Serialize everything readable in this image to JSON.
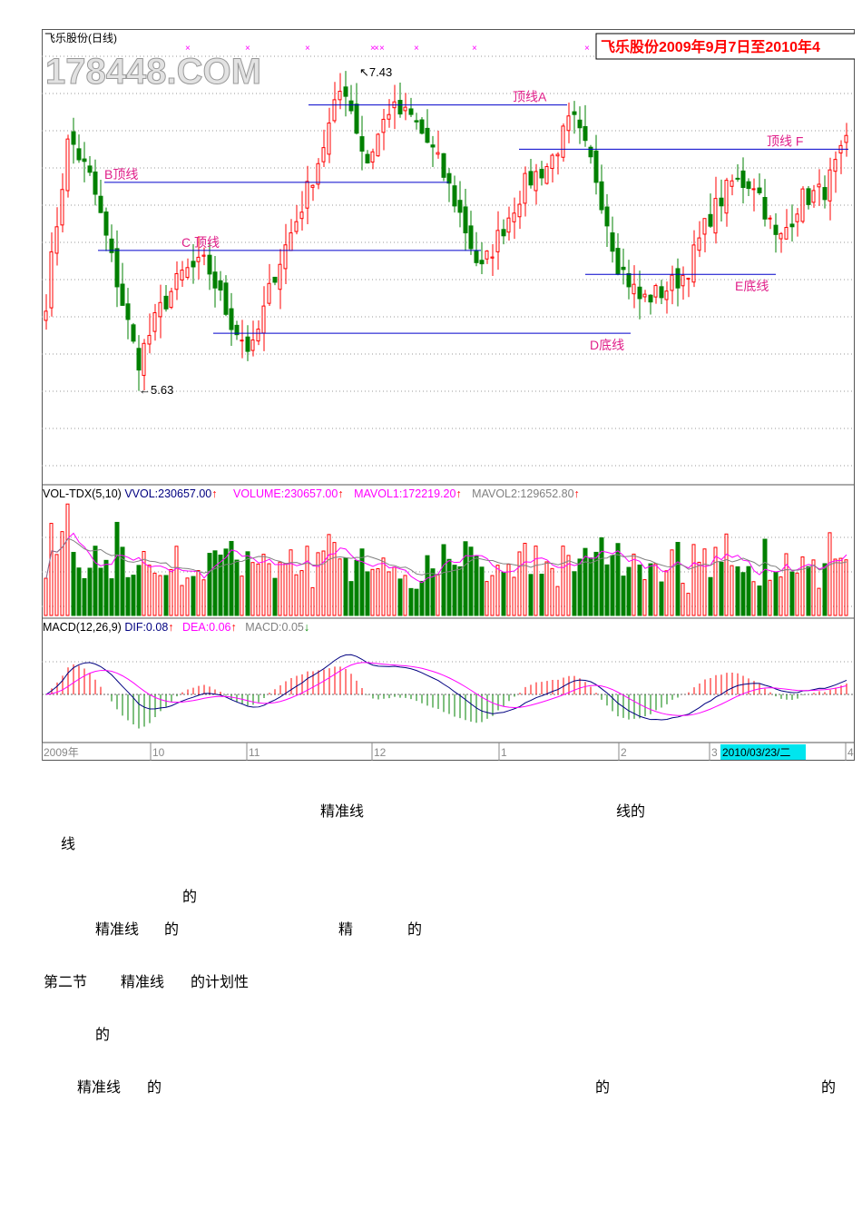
{
  "chart_data": {
    "type": "candlestick",
    "stock_title": "飞乐股份(日线)",
    "watermark": "178448.COM",
    "banner": "飞乐股份2009年9月7日至2010年4",
    "high_label": "7.43",
    "low_label": "5.63",
    "close_anchor_prices": [
      6.12,
      7.01,
      6.76,
      6.27,
      5.78,
      6.07,
      6.27,
      6.32,
      6.02,
      5.83,
      6.27,
      6.57,
      6.91,
      7.31,
      6.86,
      7.16,
      7.11,
      6.91,
      6.62,
      6.27,
      6.52,
      6.76,
      6.86,
      7.11,
      6.81,
      6.32,
      6.12,
      6.17,
      6.27,
      6.57,
      6.76,
      6.76,
      6.42,
      6.67,
      6.71,
      6.96
    ],
    "price_range": [
      5.2,
      7.55
    ],
    "reference_lines": [
      {
        "label": "B顶线",
        "price": 6.76,
        "color": "#0000cc",
        "label_color": "#e0208a"
      },
      {
        "label": "C 顶线",
        "price": 6.39,
        "color": "#0000cc",
        "label_color": "#e0208a"
      },
      {
        "label": "顶线A",
        "price": 7.18,
        "color": "#0000cc",
        "label_color": "#e0208a"
      },
      {
        "label": "顶线 F",
        "price": 6.94,
        "color": "#0000cc",
        "label_color": "#e0208a"
      },
      {
        "label": "E底线",
        "price": 6.26,
        "color": "#0000cc",
        "label_color": "#e0208a"
      },
      {
        "label": "D底线",
        "price": 5.94,
        "color": "#0000cc",
        "label_color": "#e0208a"
      }
    ],
    "volume_header": {
      "name": "VOL-TDX(5,10)",
      "vvol": "VVOL:230657.00",
      "volume": "VOLUME:230657.00",
      "mavol1": "MAVOL1:172219.20",
      "mavol2": "MAVOL2:129652.80"
    },
    "macd_header": {
      "name": "MACD(12,26,9)",
      "dif": "DIF:0.08",
      "dea": "DEA:0.06",
      "macd": "MACD:0.05"
    },
    "x_ticks": [
      "2009年",
      "10",
      "11",
      "12",
      "1",
      "2",
      "3",
      "4"
    ],
    "cursor_date": "2010/03/23/二",
    "colors": {
      "up": "#ff0000",
      "down": "#008000",
      "line": "#0000cc",
      "dif": "#000080",
      "dea": "#ff00ff",
      "ma2": "#808080"
    }
  },
  "text": {
    "r1a": "精准线",
    "r1b": "线的",
    "r2a": "线",
    "r3a": "的",
    "r4a": "精准线",
    "r4b": "的",
    "r4c": "精",
    "r4d": "的",
    "r5a": "第二节",
    "r5b": "精准线",
    "r5c": "的计划性",
    "r6a": "的",
    "r7a": "精准线",
    "r7b": "的",
    "r7c": "的",
    "r7d": "的"
  }
}
